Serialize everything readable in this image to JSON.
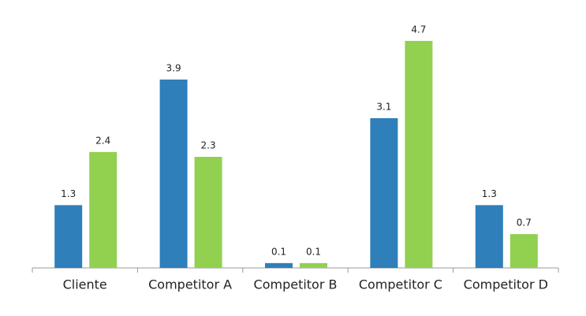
{
  "chart_data": {
    "type": "bar",
    "categories": [
      "Cliente",
      "Competitor A",
      "Competitor B",
      "Competitor C",
      "Competitor D"
    ],
    "series": [
      {
        "color": "#2e7fba",
        "values": [
          1.3,
          3.9,
          0.1,
          3.1,
          1.3
        ]
      },
      {
        "color": "#92d050",
        "values": [
          2.4,
          2.3,
          0.1,
          4.7,
          0.7
        ]
      }
    ],
    "ylim": [
      0,
      5
    ]
  }
}
